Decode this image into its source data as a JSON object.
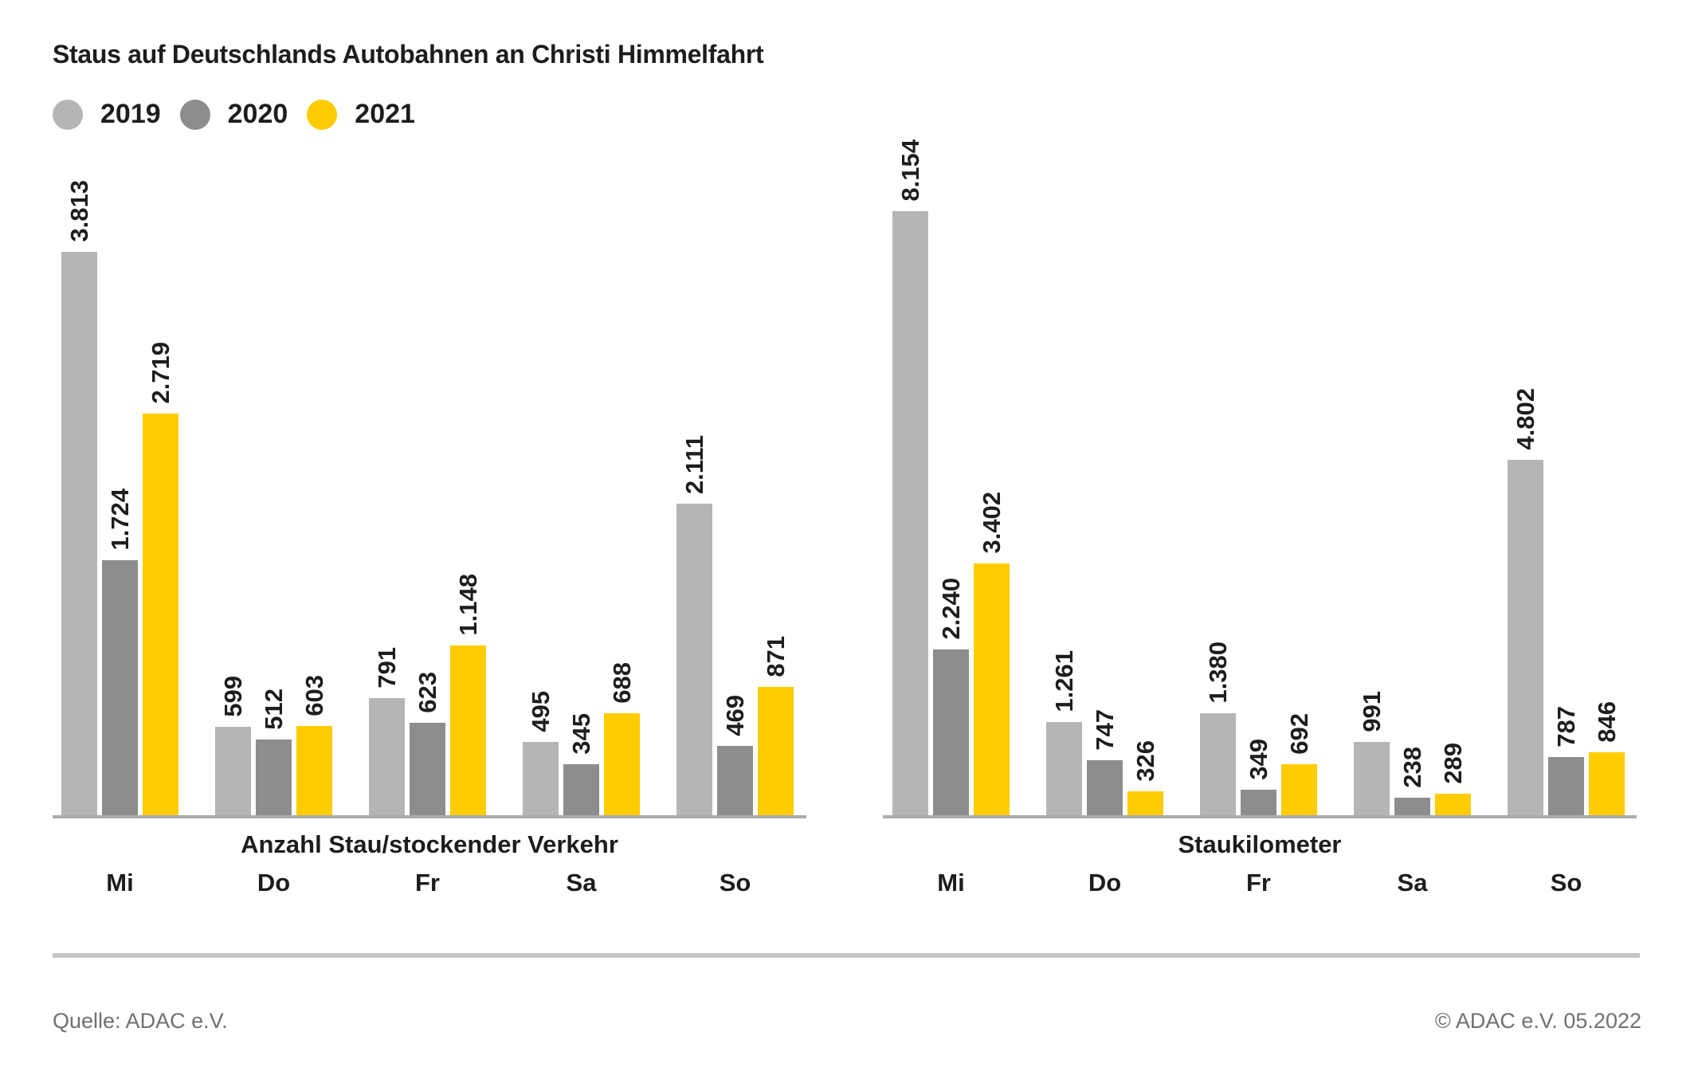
{
  "title": "Staus auf Deutschlands Autobahnen an Christi Himmelfahrt",
  "legend": [
    {
      "label": "2019",
      "color": "#b5b5b5"
    },
    {
      "label": "2020",
      "color": "#8d8d8d"
    },
    {
      "label": "2021",
      "color": "#ffcc00"
    }
  ],
  "colors": {
    "text": "#1d1d1b",
    "axis_line": "#ababab",
    "footer_text": "#71706f",
    "footer_rule": "#c6c6c6",
    "background": "#ffffff"
  },
  "chart_data": [
    {
      "type": "bar",
      "title": "Anzahl Stau/stockender Verkehr",
      "categories": [
        "Mi",
        "Do",
        "Fr",
        "Sa",
        "So"
      ],
      "series": [
        {
          "name": "2019",
          "color": "#b5b5b5",
          "values": [
            3813,
            599,
            791,
            495,
            2111
          ],
          "labels": [
            "3.813",
            "599",
            "791",
            "495",
            "2.111"
          ]
        },
        {
          "name": "2020",
          "color": "#8d8d8d",
          "values": [
            1724,
            512,
            623,
            345,
            469
          ],
          "labels": [
            "1.724",
            "512",
            "623",
            "345",
            "469"
          ]
        },
        {
          "name": "2021",
          "color": "#ffcc00",
          "values": [
            2719,
            603,
            1148,
            688,
            871
          ],
          "labels": [
            "2.719",
            "603",
            "1.148",
            "688",
            "871"
          ]
        }
      ],
      "ylim": [
        0,
        3813
      ],
      "grid": false,
      "value_labels": "rotated 90deg above each bar",
      "legend_position": "top-left above charts"
    },
    {
      "type": "bar",
      "title": "Staukilometer",
      "categories": [
        "Mi",
        "Do",
        "Fr",
        "Sa",
        "So"
      ],
      "series": [
        {
          "name": "2019",
          "color": "#b5b5b5",
          "values": [
            8154,
            1261,
            1380,
            991,
            4802
          ],
          "labels": [
            "8.154",
            "1.261",
            "1.380",
            "991",
            "4.802"
          ]
        },
        {
          "name": "2020",
          "color": "#8d8d8d",
          "values": [
            2240,
            747,
            349,
            238,
            787
          ],
          "labels": [
            "2.240",
            "747",
            "349",
            "238",
            "787"
          ]
        },
        {
          "name": "2021",
          "color": "#ffcc00",
          "values": [
            3402,
            326,
            692,
            289,
            846
          ],
          "labels": [
            "3.402",
            "326",
            "692",
            "289",
            "846"
          ]
        }
      ],
      "ylim": [
        0,
        8154
      ],
      "grid": false,
      "value_labels": "rotated 90deg above each bar",
      "legend_position": "top-left above charts"
    }
  ],
  "footer": {
    "source": "Quelle: ADAC e.V.",
    "copyright": "© ADAC e.V. 05.2022"
  }
}
